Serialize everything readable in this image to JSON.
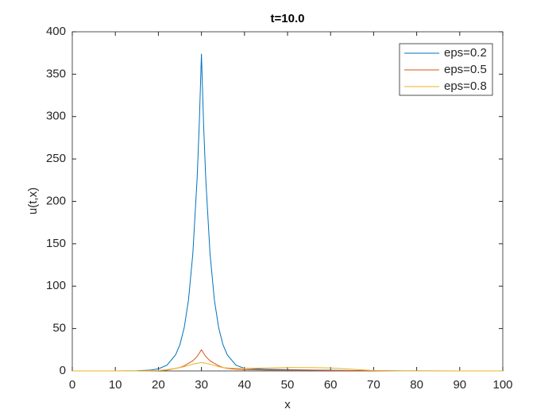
{
  "chart_data": {
    "type": "line",
    "title": "t=10.0",
    "xlabel": "x",
    "ylabel": "u(t,x)",
    "x": [
      0,
      5,
      10,
      15,
      18,
      20,
      22,
      24,
      25,
      26,
      27,
      28,
      29,
      29.5,
      30,
      30.5,
      31,
      32,
      33,
      34,
      35,
      36,
      38,
      40,
      45,
      50,
      55,
      60,
      65,
      70,
      75,
      80,
      90,
      100
    ],
    "series": [
      {
        "name": "eps=0.2",
        "color": "#0072bd",
        "values": [
          0,
          0,
          0,
          0.2,
          0.9,
          2.5,
          6.8,
          19,
          31,
          51,
          84,
          138,
          227,
          291,
          374,
          291,
          227,
          138,
          84,
          51,
          31,
          19,
          6.8,
          3,
          2,
          1.5,
          1,
          0.8,
          0.5,
          0.3,
          0.2,
          0.1,
          0,
          0
        ]
      },
      {
        "name": "eps=0.5",
        "color": "#d95319",
        "values": [
          0,
          0,
          0,
          0,
          0,
          0.3,
          1,
          3,
          4,
          6,
          9,
          12,
          17,
          21,
          25,
          21,
          17,
          12,
          9,
          6,
          4,
          3,
          2,
          1.5,
          1,
          1,
          1,
          0.5,
          0.3,
          0.2,
          0,
          0,
          0,
          0
        ]
      },
      {
        "name": "eps=0.8",
        "color": "#edb120",
        "values": [
          0,
          0,
          0,
          0,
          0.2,
          0.5,
          1.5,
          3,
          4,
          5,
          6.5,
          8,
          9,
          9.5,
          10,
          9.5,
          9,
          8,
          6.5,
          5,
          4,
          3.5,
          3,
          3,
          3.5,
          4,
          4,
          3.5,
          2,
          0.5,
          0,
          0,
          0,
          0
        ]
      }
    ],
    "xlim": [
      0,
      100
    ],
    "xticks": [
      0,
      10,
      20,
      30,
      40,
      50,
      60,
      70,
      80,
      90,
      100
    ],
    "ylim": [
      0,
      400
    ],
    "yticks": [
      0,
      50,
      100,
      150,
      200,
      250,
      300,
      350,
      400
    ],
    "legend": "upper right",
    "grid": false
  }
}
